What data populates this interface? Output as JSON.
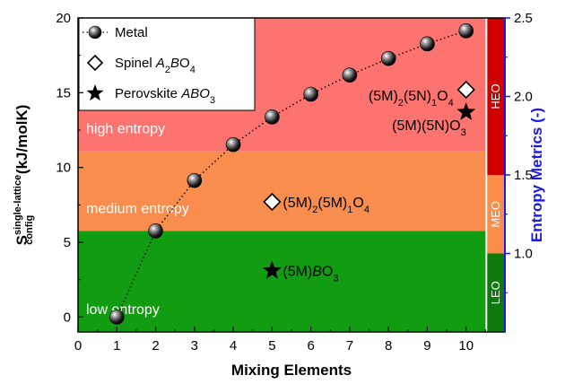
{
  "chart_data": {
    "type": "scatter",
    "xlabel": "Mixing Elements",
    "ylabel_main": "S",
    "ylabel_sub": "config",
    "ylabel_sup": "single-lattice",
    "ylabel_unit": " (kJ/molK)",
    "y2label": "Entropy Metrics (-)",
    "xlim": [
      0,
      11
    ],
    "ylim": [
      -1,
      20
    ],
    "y2lim": [
      0.5,
      2.5
    ],
    "x_ticks": [
      "0",
      "1",
      "2",
      "3",
      "4",
      "5",
      "6",
      "7",
      "8",
      "9",
      "10"
    ],
    "y_ticks": [
      "0",
      "5",
      "10",
      "15",
      "20"
    ],
    "y2_ticks": [
      "1.0",
      "1.5",
      "2.0",
      "2.5"
    ],
    "bands": [
      {
        "label": "low entropy",
        "y_from": -1,
        "y_to": 5.76,
        "color": "#129c12"
      },
      {
        "label": "medium entropy",
        "y_from": 5.76,
        "y_to": 11.08,
        "color": "#f98d4e"
      },
      {
        "label": "high entropy",
        "y_from": 11.08,
        "y_to": 20,
        "color": "#fd7370"
      }
    ],
    "metric_bands": [
      {
        "label": "LEO",
        "y2_from": 0.5,
        "y2_to": 1.0,
        "color": "#0d7a0d"
      },
      {
        "label": "MEO",
        "y2_from": 1.0,
        "y2_to": 1.5,
        "color": "#fb8d48"
      },
      {
        "label": "HEO",
        "y2_from": 1.5,
        "y2_to": 2.5,
        "color": "#d00000"
      }
    ],
    "series": [
      {
        "name": "Metal",
        "marker": "sphere",
        "x": [
          1,
          2,
          3,
          4,
          5,
          6,
          7,
          8,
          9,
          10
        ],
        "y": [
          0,
          5.76,
          9.13,
          11.53,
          13.38,
          14.9,
          16.18,
          17.29,
          18.27,
          19.14
        ]
      },
      {
        "name": "Spinel A2BO4",
        "marker": "diamond",
        "x": [
          5,
          10
        ],
        "y": [
          7.7,
          15.2
        ]
      },
      {
        "name": "Perovskite ABO3",
        "marker": "star",
        "x": [
          5,
          10
        ],
        "y": [
          3.1,
          13.7
        ]
      }
    ],
    "annotations": [
      {
        "x": 5,
        "y": 7.7,
        "pre": "(5M)",
        "s1": "2",
        "mid": "(5M)",
        "s2": "1",
        "post": "O",
        "s3": "4"
      },
      {
        "x": 5,
        "y": 3.1,
        "pre": "(5M)",
        "italic": "B",
        "post": "O",
        "s3": "3"
      },
      {
        "x": 10,
        "y": 15.2,
        "pre": "(5M)",
        "s1": "2",
        "mid": "(5N)",
        "s2": "1",
        "post": "O",
        "s3": "4"
      },
      {
        "x": 10,
        "y": 13.7,
        "pre": "(5M)(5N)O",
        "s3": "3"
      }
    ],
    "legend": {
      "position": "top-left",
      "entries": [
        {
          "pre": "Metal"
        },
        {
          "pre": "Spinel ",
          "italic1": "A",
          "s1": "2",
          "italic2": "B",
          "post": "O",
          "s2": "4"
        },
        {
          "pre": "Perovskite ",
          "italic1": "ABO",
          "s2": "3"
        }
      ]
    },
    "colors": {
      "right_axis": "#1a1ae6",
      "line": "#000000"
    }
  }
}
